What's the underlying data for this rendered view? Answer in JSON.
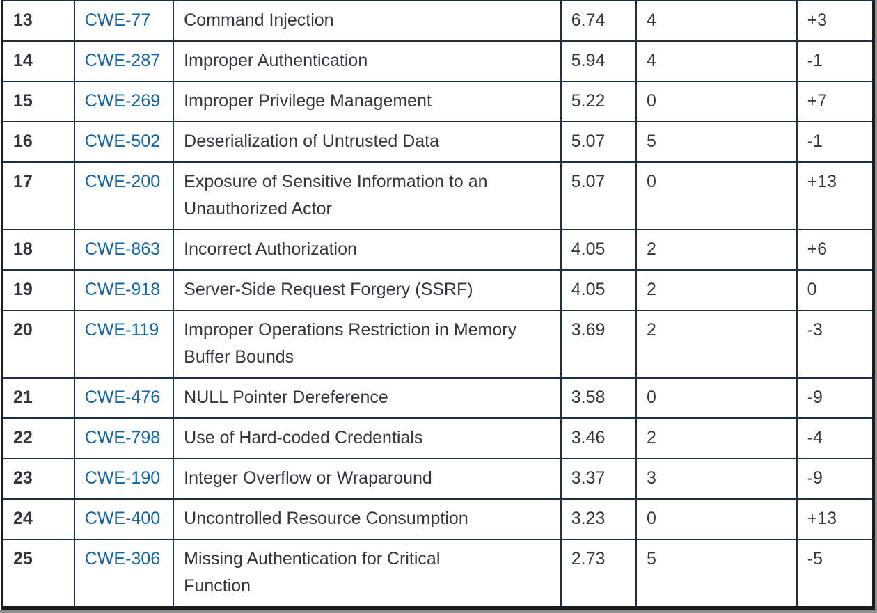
{
  "page": {
    "description": "CWE Top 25 ranking table fragment (rows 13-25)"
  },
  "theme": {
    "link_color": "#1165a8",
    "inner_border_color": "#1d3144",
    "outer_border_color": "#1b1b1b",
    "text_color": "#35363b",
    "background": "#ffffff",
    "edge_color": "#8f8f8f"
  },
  "table": {
    "rows": [
      {
        "rank": "13",
        "id": "CWE-77",
        "name": "Command Injection",
        "score": "6.74",
        "count": "4",
        "change": "+3"
      },
      {
        "rank": "14",
        "id": "CWE-287",
        "name": "Improper Authentication",
        "score": "5.94",
        "count": "4",
        "change": "-1"
      },
      {
        "rank": "15",
        "id": "CWE-269",
        "name": "Improper Privilege Management",
        "score": "5.22",
        "count": "0",
        "change": "+7"
      },
      {
        "rank": "16",
        "id": "CWE-502",
        "name": "Deserialization of Untrusted Data",
        "score": "5.07",
        "count": "5",
        "change": "-1"
      },
      {
        "rank": "17",
        "id": "CWE-200",
        "name": "Exposure of Sensitive Information to an\nUnauthorized Actor",
        "score": "5.07",
        "count": "0",
        "change": "+13"
      },
      {
        "rank": "18",
        "id": "CWE-863",
        "name": "Incorrect Authorization",
        "score": "4.05",
        "count": "2",
        "change": "+6"
      },
      {
        "rank": "19",
        "id": "CWE-918",
        "name": "Server-Side Request Forgery (SSRF)",
        "score": "4.05",
        "count": "2",
        "change": "0"
      },
      {
        "rank": "20",
        "id": "CWE-119",
        "name": "Improper Operations Restriction in Memory\nBuffer Bounds",
        "score": "3.69",
        "count": "2",
        "change": "-3"
      },
      {
        "rank": "21",
        "id": "CWE-476",
        "name": "NULL Pointer Dereference",
        "score": "3.58",
        "count": "0",
        "change": "-9"
      },
      {
        "rank": "22",
        "id": "CWE-798",
        "name": "Use of Hard-coded Credentials",
        "score": "3.46",
        "count": "2",
        "change": "-4"
      },
      {
        "rank": "23",
        "id": "CWE-190",
        "name": "Integer Overflow or Wraparound",
        "score": "3.37",
        "count": "3",
        "change": "-9"
      },
      {
        "rank": "24",
        "id": "CWE-400",
        "name": "Uncontrolled Resource Consumption",
        "score": "3.23",
        "count": "0",
        "change": "+13"
      },
      {
        "rank": "25",
        "id": "CWE-306",
        "name": "Missing Authentication for Critical\nFunction",
        "score": "2.73",
        "count": "5",
        "change": "-5"
      }
    ]
  }
}
